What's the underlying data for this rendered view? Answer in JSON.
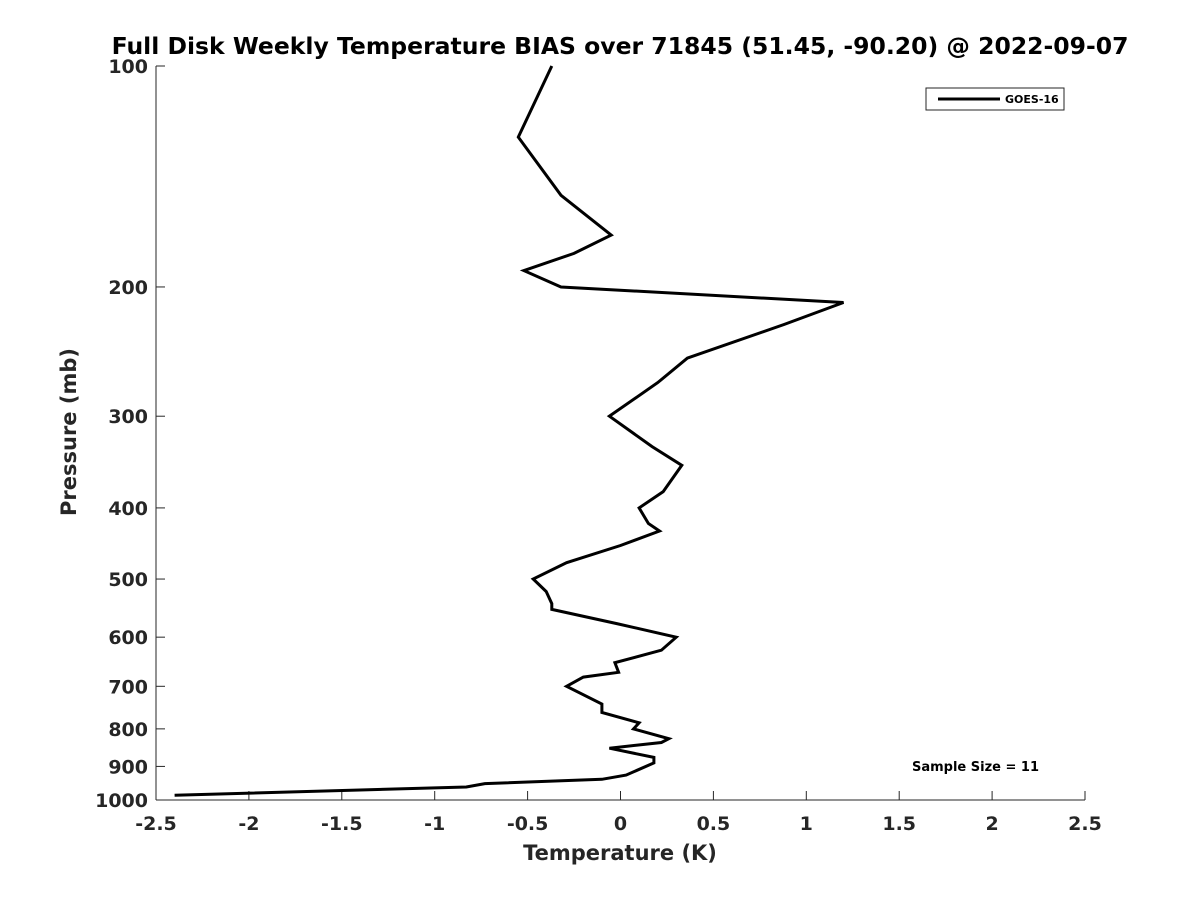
{
  "chart_data": {
    "type": "line",
    "title": "Full Disk Weekly Temperature BIAS over 71845 (51.45, -90.20) @ 2022-09-07",
    "xlabel": "Temperature (K)",
    "ylabel": "Pressure (mb)",
    "xlim": [
      -2.5,
      2.5
    ],
    "ylim": [
      1000,
      100
    ],
    "yscale": "log",
    "y_inverted": true,
    "xticks": [
      -2.5,
      -2,
      -1.5,
      -1,
      -0.5,
      0,
      0.5,
      1,
      1.5,
      2,
      2.5
    ],
    "xtick_labels": [
      "-2.5",
      "-2",
      "-1.5",
      "-1",
      "-0.5",
      "0",
      "0.5",
      "1",
      "1.5",
      "2",
      "2.5"
    ],
    "yticks": [
      100,
      200,
      300,
      400,
      500,
      600,
      700,
      800,
      900,
      1000
    ],
    "ytick_labels": [
      "100",
      "200",
      "300",
      "400",
      "500",
      "600",
      "700",
      "800",
      "900",
      "1000"
    ],
    "grid": false,
    "legend_position": "top-right",
    "series": [
      {
        "name": "GOES-16",
        "color": "#000000",
        "points": [
          {
            "x": -0.37,
            "y": 100
          },
          {
            "x": -0.55,
            "y": 125
          },
          {
            "x": -0.32,
            "y": 150
          },
          {
            "x": -0.05,
            "y": 170
          },
          {
            "x": -0.25,
            "y": 180
          },
          {
            "x": -0.52,
            "y": 190
          },
          {
            "x": -0.32,
            "y": 200
          },
          {
            "x": 1.2,
            "y": 210
          },
          {
            "x": 0.88,
            "y": 225
          },
          {
            "x": 0.36,
            "y": 250
          },
          {
            "x": 0.2,
            "y": 270
          },
          {
            "x": -0.06,
            "y": 300
          },
          {
            "x": 0.17,
            "y": 330
          },
          {
            "x": 0.33,
            "y": 350
          },
          {
            "x": 0.23,
            "y": 380
          },
          {
            "x": 0.1,
            "y": 400
          },
          {
            "x": 0.15,
            "y": 420
          },
          {
            "x": 0.21,
            "y": 430
          },
          {
            "x": 0.0,
            "y": 450
          },
          {
            "x": -0.29,
            "y": 475
          },
          {
            "x": -0.47,
            "y": 500
          },
          {
            "x": -0.4,
            "y": 520
          },
          {
            "x": -0.37,
            "y": 540
          },
          {
            "x": -0.37,
            "y": 550
          },
          {
            "x": -0.02,
            "y": 575
          },
          {
            "x": 0.3,
            "y": 600
          },
          {
            "x": 0.22,
            "y": 625
          },
          {
            "x": -0.03,
            "y": 650
          },
          {
            "x": -0.01,
            "y": 670
          },
          {
            "x": -0.2,
            "y": 680
          },
          {
            "x": -0.29,
            "y": 700
          },
          {
            "x": -0.1,
            "y": 740
          },
          {
            "x": -0.1,
            "y": 760
          },
          {
            "x": 0.1,
            "y": 785
          },
          {
            "x": 0.07,
            "y": 800
          },
          {
            "x": 0.26,
            "y": 825
          },
          {
            "x": 0.22,
            "y": 835
          },
          {
            "x": -0.06,
            "y": 850
          },
          {
            "x": 0.18,
            "y": 875
          },
          {
            "x": 0.18,
            "y": 890
          },
          {
            "x": 0.03,
            "y": 925
          },
          {
            "x": -0.1,
            "y": 937
          },
          {
            "x": -0.73,
            "y": 950
          },
          {
            "x": -0.83,
            "y": 960
          },
          {
            "x": -2.4,
            "y": 985
          }
        ]
      }
    ],
    "annotations": [
      {
        "text": "Sample Size = 11",
        "position": "bottom-right"
      }
    ]
  }
}
